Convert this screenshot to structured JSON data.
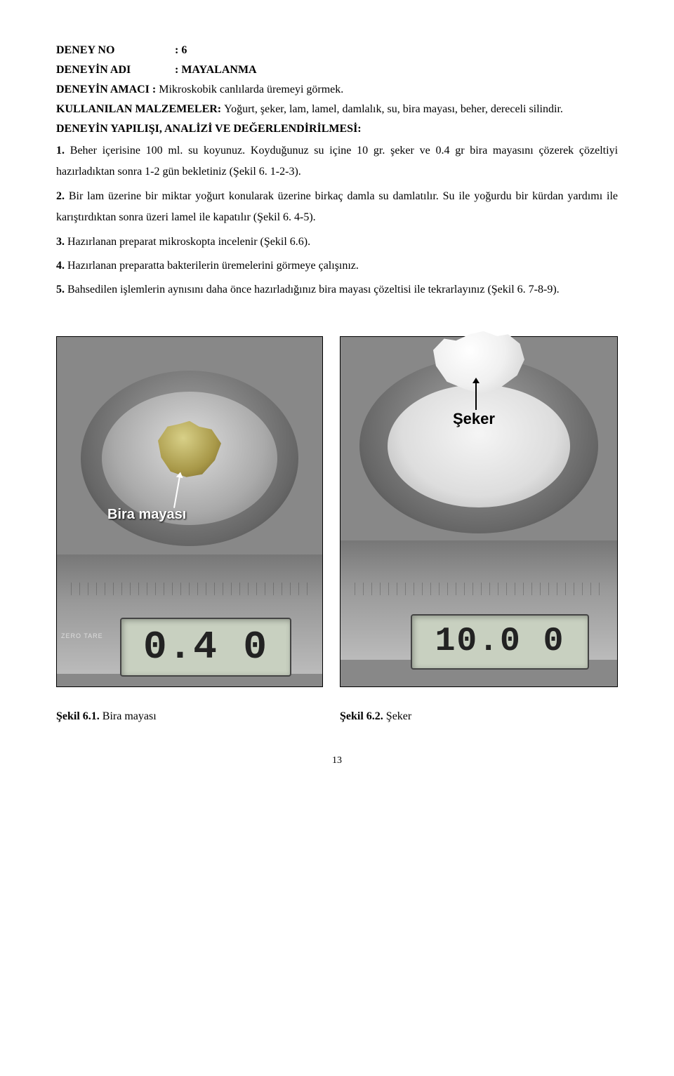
{
  "header": {
    "deney_no_label": "DENEY NO",
    "deney_no_value": ": 6",
    "deney_adi_label": "DENEYİN ADI",
    "deney_adi_value": ": MAYALANMA",
    "deney_amaci_label": "DENEYİN AMACI",
    "deney_amaci_sep": " : ",
    "deney_amaci_value": "Mikroskobik canlılarda üremeyi görmek."
  },
  "malzeme": {
    "label": "KULLANILAN MALZEMELER: ",
    "text": "Yoğurt, şeker, lam, lamel, damlalık, su, bira mayası, beher, dereceli silindir."
  },
  "yapilis_title": "DENEYİN YAPILIŞI, ANALİZİ VE DEĞERLENDİRİLMESİ:",
  "steps": {
    "s1_num": "1. ",
    "s1_text": "Beher içerisine 100 ml. su koyunuz. Koyduğunuz su içine 10 gr. şeker ve 0.4 gr bira mayasını çözerek çözeltiyi hazırladıktan sonra 1-2 gün bekletiniz (Şekil 6. 1-2-3).",
    "s2_num": "2. ",
    "s2_text": "Bir lam üzerine bir miktar yoğurt konularak üzerine birkaç damla su damlatılır. Su ile yoğurdu bir kürdan yardımı ile karıştırdıktan sonra üzeri lamel ile kapatılır (Şekil 6. 4-5).",
    "s3_num": "3. ",
    "s3_text": "Hazırlanan preparat mikroskopta incelenir (Şekil 6.6).",
    "s4_num": "4. ",
    "s4_text": "Hazırlanan preparatta bakterilerin üremelerini görmeye çalışınız.",
    "s5_num": "5. ",
    "s5_text": "Bahsedilen işlemlerin aynısını daha önce hazırladığınız bira mayası çözeltisi ile tekrarlayınız (Şekil 6. 7-8-9)."
  },
  "figures": {
    "left_photo_label": "Bira mayası",
    "left_lcd": "0.4 0",
    "left_zero": "ZERO TARE",
    "right_photo_label": "Şeker",
    "right_lcd": "10.0 0"
  },
  "captions": {
    "left_bold": "Şekil 6.1. ",
    "left_text": "Bira mayası",
    "right_bold": "Şekil 6.2. ",
    "right_text": "Şeker"
  },
  "page_number": "13"
}
